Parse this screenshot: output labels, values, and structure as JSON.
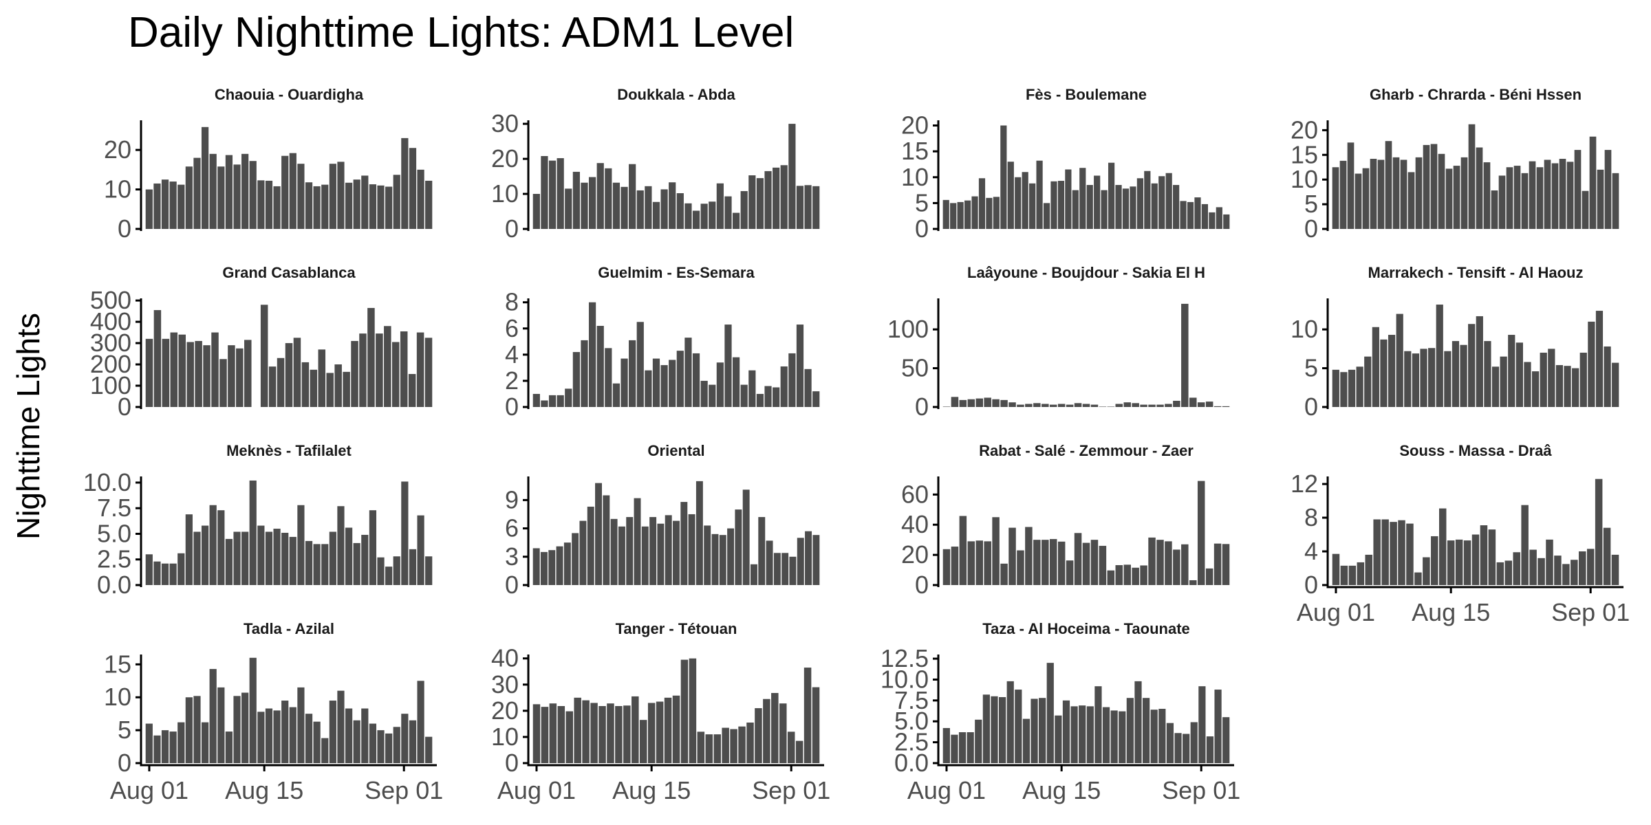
{
  "chart_data": {
    "type": "bar",
    "title": "Daily Nighttime Lights: ADM1 Level",
    "xlabel": "",
    "ylabel": "Nighttime Lights",
    "x_ticks": [
      "Aug 01",
      "Aug 15",
      "Sep 01"
    ],
    "x_tick_dates": [
      "2023-08-01",
      "2023-08-15",
      "2023-09-01"
    ],
    "x_range": [
      "2023-08-01",
      "2023-09-05"
    ],
    "grid": false,
    "panels": [
      {
        "name": "Chaouia - Ouardigha",
        "yticks": [
          0,
          10,
          20
        ],
        "ylim": [
          0,
          27.5
        ],
        "values": [
          10,
          11.5,
          12.5,
          12,
          11.2,
          15.8,
          18,
          25.8,
          19,
          15.8,
          18.7,
          16.3,
          19,
          17.2,
          12.3,
          12.2,
          10.8,
          18.5,
          19.2,
          16.5,
          11.8,
          10.8,
          11.2,
          16.5,
          17,
          11.7,
          12.5,
          13.5,
          11.3,
          11,
          10.7,
          13.7,
          23,
          20.5,
          15,
          12.2
        ]
      },
      {
        "name": "Doukkala - Abda",
        "yticks": [
          0,
          10,
          20,
          30
        ],
        "ylim": [
          0,
          31
        ],
        "values": [
          10,
          20.8,
          19.5,
          20.2,
          11.5,
          16.3,
          13.2,
          14.8,
          18.8,
          17.3,
          13.2,
          12,
          18.5,
          11,
          12.2,
          7.7,
          11.3,
          13.3,
          10.2,
          7.3,
          5.2,
          7.2,
          7.8,
          13,
          9.3,
          4.6,
          10.8,
          15.3,
          14.5,
          16.5,
          17.5,
          18.2,
          30,
          12.3,
          12.5,
          12.2
        ]
      },
      {
        "name": "Fès - Boulemane",
        "yticks": [
          0,
          5,
          10,
          15,
          20
        ],
        "ylim": [
          0,
          21
        ],
        "values": [
          5.6,
          5,
          5.2,
          5.5,
          6.3,
          9.8,
          6,
          6.2,
          20,
          13,
          10,
          11,
          8.8,
          13.2,
          5,
          9.2,
          9.3,
          11.5,
          7.5,
          11.8,
          8.5,
          10.3,
          7.5,
          12.8,
          8.5,
          7.8,
          8.2,
          9.8,
          11.2,
          8.8,
          10.2,
          10.8,
          8.5,
          5.4,
          5.2,
          6.1,
          4.8,
          3.2,
          4.2,
          2.8
        ]
      },
      {
        "name": "Gharb - Chrarda - Béni Hssen",
        "yticks": [
          0,
          5,
          10,
          15,
          20
        ],
        "ylim": [
          0,
          22
        ],
        "values": [
          12.5,
          13.8,
          17.5,
          11.2,
          12.3,
          14.2,
          14,
          17.8,
          14.5,
          14,
          11.5,
          14.5,
          17,
          17.2,
          15.2,
          12.2,
          12.8,
          14.5,
          21.2,
          16.5,
          13.5,
          7.8,
          10.8,
          12.5,
          12.8,
          11.3,
          13.7,
          12.5,
          14,
          13.3,
          14.2,
          13.6,
          16,
          7.7,
          18.7,
          12,
          16,
          11.3
        ]
      },
      {
        "name": "Grand Casablanca",
        "yticks": [
          0,
          100,
          200,
          300,
          400,
          500
        ],
        "ylim": [
          0,
          510
        ],
        "values": [
          320,
          455,
          320,
          350,
          340,
          305,
          310,
          290,
          350,
          225,
          290,
          275,
          315,
          null,
          480,
          190,
          230,
          300,
          325,
          210,
          175,
          270,
          160,
          200,
          165,
          310,
          345,
          465,
          345,
          380,
          305,
          355,
          155,
          350,
          325
        ]
      },
      {
        "name": "Guelmim - Es-Semara",
        "yticks": [
          0,
          2,
          4,
          6,
          8
        ],
        "ylim": [
          0,
          8.3
        ],
        "values": [
          1,
          0.5,
          0.9,
          0.9,
          1.4,
          4.2,
          5.1,
          8,
          6.2,
          4.5,
          1.8,
          3.7,
          5.1,
          6.5,
          2.8,
          3.7,
          3.2,
          3.6,
          4.3,
          5.3,
          4.1,
          2,
          1.7,
          3.4,
          6.3,
          3.8,
          1.7,
          2.8,
          1,
          1.6,
          1.5,
          3.1,
          4.1,
          6.3,
          2.9,
          1.2
        ]
      },
      {
        "name": "Laâyoune - Boujdour - Sakia El H",
        "yticks": [
          0,
          50,
          100
        ],
        "ylim": [
          0,
          140
        ],
        "values": [
          0.5,
          13,
          9,
          10,
          11,
          12,
          10,
          9,
          6,
          3,
          4,
          5,
          4,
          3,
          4,
          3,
          5,
          4,
          3,
          0.5,
          0.5,
          4,
          6,
          5,
          3,
          3,
          3,
          4,
          8,
          133,
          12,
          6,
          7,
          1,
          1
        ]
      },
      {
        "name": "Marrakech - Tensift - Al Haouz",
        "yticks": [
          0,
          5,
          10
        ],
        "ylim": [
          0,
          14
        ],
        "values": [
          4.8,
          4.5,
          4.8,
          5.2,
          6.5,
          10.3,
          8.7,
          9.3,
          12,
          7.2,
          6.9,
          7.5,
          7.6,
          13.2,
          7.2,
          8.5,
          8,
          10.7,
          11.7,
          8.5,
          5.2,
          6.5,
          9.3,
          8.3,
          5.8,
          4.6,
          7,
          7.5,
          5.4,
          5.3,
          5,
          7,
          11,
          12.4,
          7.8,
          5.7
        ]
      },
      {
        "name": "Meknès - Tafilalet",
        "yticks": [
          0,
          2.5,
          5,
          7.5,
          10
        ],
        "ylim": [
          0,
          10.6
        ],
        "values": [
          3,
          2.3,
          2.1,
          2.1,
          3.1,
          6.9,
          5.2,
          5.8,
          7.8,
          7.3,
          4.5,
          5.2,
          5.2,
          10.2,
          5.8,
          5.2,
          5.5,
          5.1,
          4.7,
          7.8,
          4.3,
          4,
          4,
          5.2,
          7.7,
          5.6,
          4.1,
          4.9,
          7.3,
          2.7,
          1.8,
          2.8,
          10.1,
          3.5,
          6.8,
          2.8
        ]
      },
      {
        "name": "Oriental",
        "yticks": [
          0,
          3,
          6,
          9
        ],
        "ylim": [
          0,
          11.5
        ],
        "values": [
          3.9,
          3.5,
          3.7,
          4.1,
          4.5,
          5.5,
          6.8,
          8.3,
          10.8,
          9.5,
          7,
          6.2,
          7.2,
          9.2,
          6.2,
          7.2,
          6.5,
          7.4,
          6.8,
          8.8,
          7.5,
          11,
          6.3,
          5.4,
          5.3,
          6,
          8,
          10.1,
          2.2,
          7.2,
          4.7,
          3.4,
          3.4,
          3,
          5,
          5.7,
          5.3
        ]
      },
      {
        "name": "Rabat - Salé - Zemmour - Zaer",
        "yticks": [
          0,
          20,
          40,
          60
        ],
        "ylim": [
          0,
          72
        ],
        "values": [
          23.8,
          25.5,
          45.8,
          29,
          29.5,
          29,
          45,
          14.2,
          38,
          23,
          38.5,
          30,
          30,
          30.5,
          28.8,
          16.3,
          34.5,
          28,
          30,
          26,
          9.7,
          13.2,
          13.5,
          11.5,
          13,
          31.5,
          30,
          29,
          23.5,
          27,
          3.2,
          69,
          11,
          27.5,
          27.2
        ]
      },
      {
        "name": "Souss - Massa - Draâ",
        "yticks": [
          0,
          4,
          8,
          12
        ],
        "ylim": [
          0,
          12.9
        ],
        "values": [
          3.7,
          2.3,
          2.3,
          2.7,
          3.6,
          7.8,
          7.8,
          7.5,
          7.7,
          7.3,
          1.5,
          3.3,
          5.8,
          9.1,
          5.3,
          5.4,
          5.3,
          6,
          7.1,
          6.6,
          2.7,
          2.9,
          3.9,
          9.5,
          4.2,
          3.2,
          5.4,
          3.5,
          2.5,
          3,
          4,
          4.3,
          12.6,
          6.8,
          3.6
        ]
      },
      {
        "name": "Tadla - Azilal",
        "yticks": [
          0,
          5,
          10,
          15
        ],
        "ylim": [
          0,
          16.5
        ],
        "values": [
          6,
          4.2,
          5,
          4.8,
          6.2,
          10,
          10.2,
          6.2,
          14.3,
          11.5,
          4.8,
          10.2,
          10.7,
          16,
          7.8,
          8.3,
          8,
          9.5,
          8.5,
          11.5,
          7.5,
          6.3,
          3.8,
          9.5,
          11,
          8.3,
          6.5,
          8.3,
          6,
          5,
          4.5,
          5.5,
          7.5,
          6.5,
          12.5,
          4
        ]
      },
      {
        "name": "Tanger - Tétouan",
        "yticks": [
          0,
          10,
          20,
          30,
          40
        ],
        "ylim": [
          0,
          41.5
        ],
        "values": [
          22.5,
          21.5,
          22.8,
          21.8,
          19.8,
          25,
          24,
          23,
          21.8,
          22.8,
          21.8,
          22,
          25.5,
          16.5,
          23,
          23.5,
          25,
          25.8,
          39.5,
          40,
          12,
          11,
          11,
          13.5,
          13,
          14,
          15.5,
          21,
          24.5,
          26.8,
          22.8,
          12,
          8.5,
          36.5,
          29
        ]
      },
      {
        "name": "Taza - Al Hoceima - Taounate",
        "yticks": [
          0,
          2.5,
          5,
          7.5,
          10,
          12.5
        ],
        "ylim": [
          0,
          13
        ],
        "values": [
          4.2,
          3.4,
          3.7,
          3.7,
          5.2,
          8.2,
          8,
          7.9,
          9.8,
          8.8,
          5.3,
          7.7,
          7.8,
          12,
          5.7,
          7.5,
          6.8,
          6.9,
          6.8,
          9.2,
          6.7,
          6.3,
          6.2,
          7.8,
          9.8,
          7.8,
          6.4,
          6.5,
          4.8,
          3.6,
          3.5,
          4.9,
          9.2,
          3.2,
          8.8,
          5.5
        ]
      }
    ]
  }
}
